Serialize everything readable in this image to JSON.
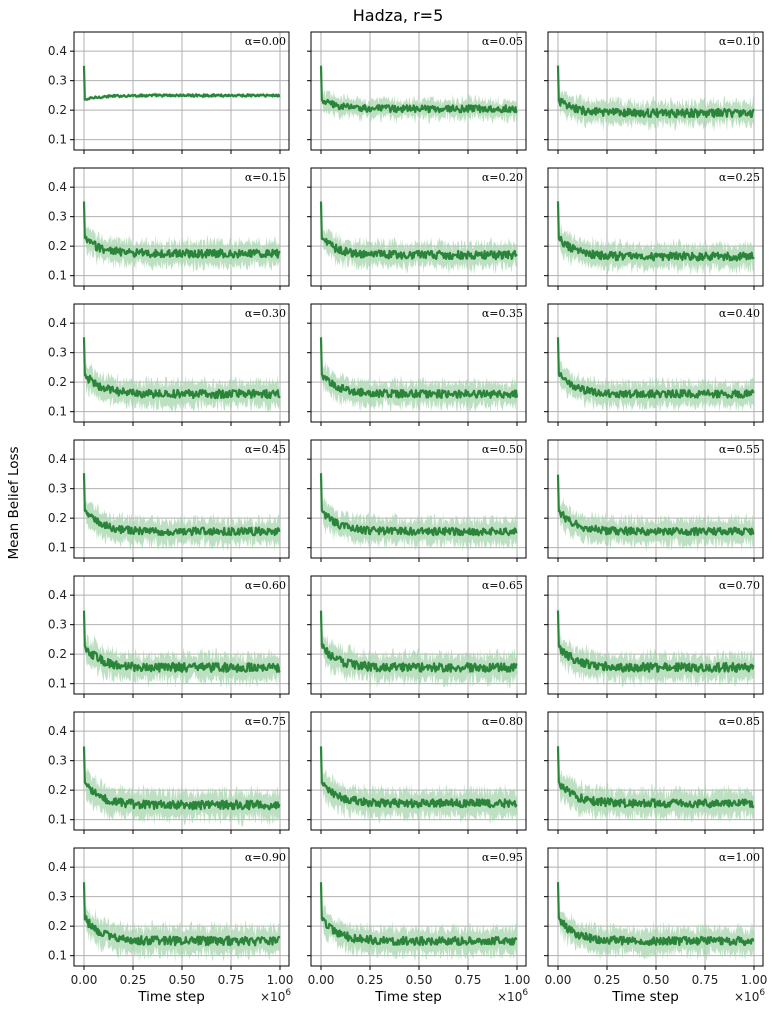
{
  "title": "Hadza, r=5",
  "ylabel": "Mean Belief Loss",
  "xlabel": "Time step",
  "x_multiplier": "×10",
  "x_multiplier_exp": "6",
  "x_tick_labels": [
    "0.00",
    "0.25",
    "0.50",
    "0.75",
    "1.00"
  ],
  "y_tick_labels": [
    "0.1",
    "0.2",
    "0.3",
    "0.4"
  ],
  "alpha_prefix": "α=",
  "colors": {
    "line": "#2a8439",
    "band": "#a8d5ad",
    "grid": "#b0b0b0"
  },
  "chart_data": {
    "type": "line",
    "layout": "7x3 grid of subplots, shared axes",
    "title": "Hadza, r=5",
    "xlabel": "Time step",
    "ylabel": "Mean Belief Loss",
    "xlim": [
      0,
      1000000
    ],
    "ylim": [
      0.065,
      0.465
    ],
    "x_ticks": [
      0,
      250000,
      500000,
      750000,
      1000000
    ],
    "y_ticks": [
      0.1,
      0.2,
      0.3,
      0.4
    ],
    "grid": true,
    "panels": [
      {
        "alpha": "0.00",
        "start": 0.35,
        "drop": 0.235,
        "plateau": 0.25,
        "noise": 0.004,
        "band": 0.006
      },
      {
        "alpha": "0.05",
        "start": 0.35,
        "drop": 0.235,
        "plateau": 0.205,
        "noise": 0.012,
        "band": 0.032
      },
      {
        "alpha": "0.10",
        "start": 0.35,
        "drop": 0.235,
        "plateau": 0.19,
        "noise": 0.014,
        "band": 0.04
      },
      {
        "alpha": "0.15",
        "start": 0.35,
        "drop": 0.23,
        "plateau": 0.175,
        "noise": 0.014,
        "band": 0.042
      },
      {
        "alpha": "0.20",
        "start": 0.35,
        "drop": 0.23,
        "plateau": 0.17,
        "noise": 0.014,
        "band": 0.042
      },
      {
        "alpha": "0.25",
        "start": 0.35,
        "drop": 0.23,
        "plateau": 0.165,
        "noise": 0.014,
        "band": 0.042
      },
      {
        "alpha": "0.30",
        "start": 0.35,
        "drop": 0.23,
        "plateau": 0.16,
        "noise": 0.014,
        "band": 0.044
      },
      {
        "alpha": "0.35",
        "start": 0.35,
        "drop": 0.23,
        "plateau": 0.16,
        "noise": 0.013,
        "band": 0.042
      },
      {
        "alpha": "0.40",
        "start": 0.35,
        "drop": 0.23,
        "plateau": 0.16,
        "noise": 0.013,
        "band": 0.042
      },
      {
        "alpha": "0.45",
        "start": 0.35,
        "drop": 0.23,
        "plateau": 0.155,
        "noise": 0.013,
        "band": 0.044
      },
      {
        "alpha": "0.50",
        "start": 0.35,
        "drop": 0.23,
        "plateau": 0.155,
        "noise": 0.013,
        "band": 0.044
      },
      {
        "alpha": "0.55",
        "start": 0.35,
        "drop": 0.23,
        "plateau": 0.155,
        "noise": 0.013,
        "band": 0.044
      },
      {
        "alpha": "0.60",
        "start": 0.35,
        "drop": 0.23,
        "plateau": 0.155,
        "noise": 0.015,
        "band": 0.046
      },
      {
        "alpha": "0.65",
        "start": 0.35,
        "drop": 0.23,
        "plateau": 0.155,
        "noise": 0.015,
        "band": 0.046
      },
      {
        "alpha": "0.70",
        "start": 0.35,
        "drop": 0.23,
        "plateau": 0.155,
        "noise": 0.015,
        "band": 0.046
      },
      {
        "alpha": "0.75",
        "start": 0.35,
        "drop": 0.23,
        "plateau": 0.15,
        "noise": 0.015,
        "band": 0.048
      },
      {
        "alpha": "0.80",
        "start": 0.35,
        "drop": 0.23,
        "plateau": 0.155,
        "noise": 0.014,
        "band": 0.046
      },
      {
        "alpha": "0.85",
        "start": 0.35,
        "drop": 0.23,
        "plateau": 0.155,
        "noise": 0.014,
        "band": 0.046
      },
      {
        "alpha": "0.90",
        "start": 0.35,
        "drop": 0.23,
        "plateau": 0.15,
        "noise": 0.015,
        "band": 0.048
      },
      {
        "alpha": "0.95",
        "start": 0.35,
        "drop": 0.23,
        "plateau": 0.15,
        "noise": 0.014,
        "band": 0.046
      },
      {
        "alpha": "1.00",
        "start": 0.35,
        "drop": 0.23,
        "plateau": 0.15,
        "noise": 0.014,
        "band": 0.046
      }
    ]
  }
}
